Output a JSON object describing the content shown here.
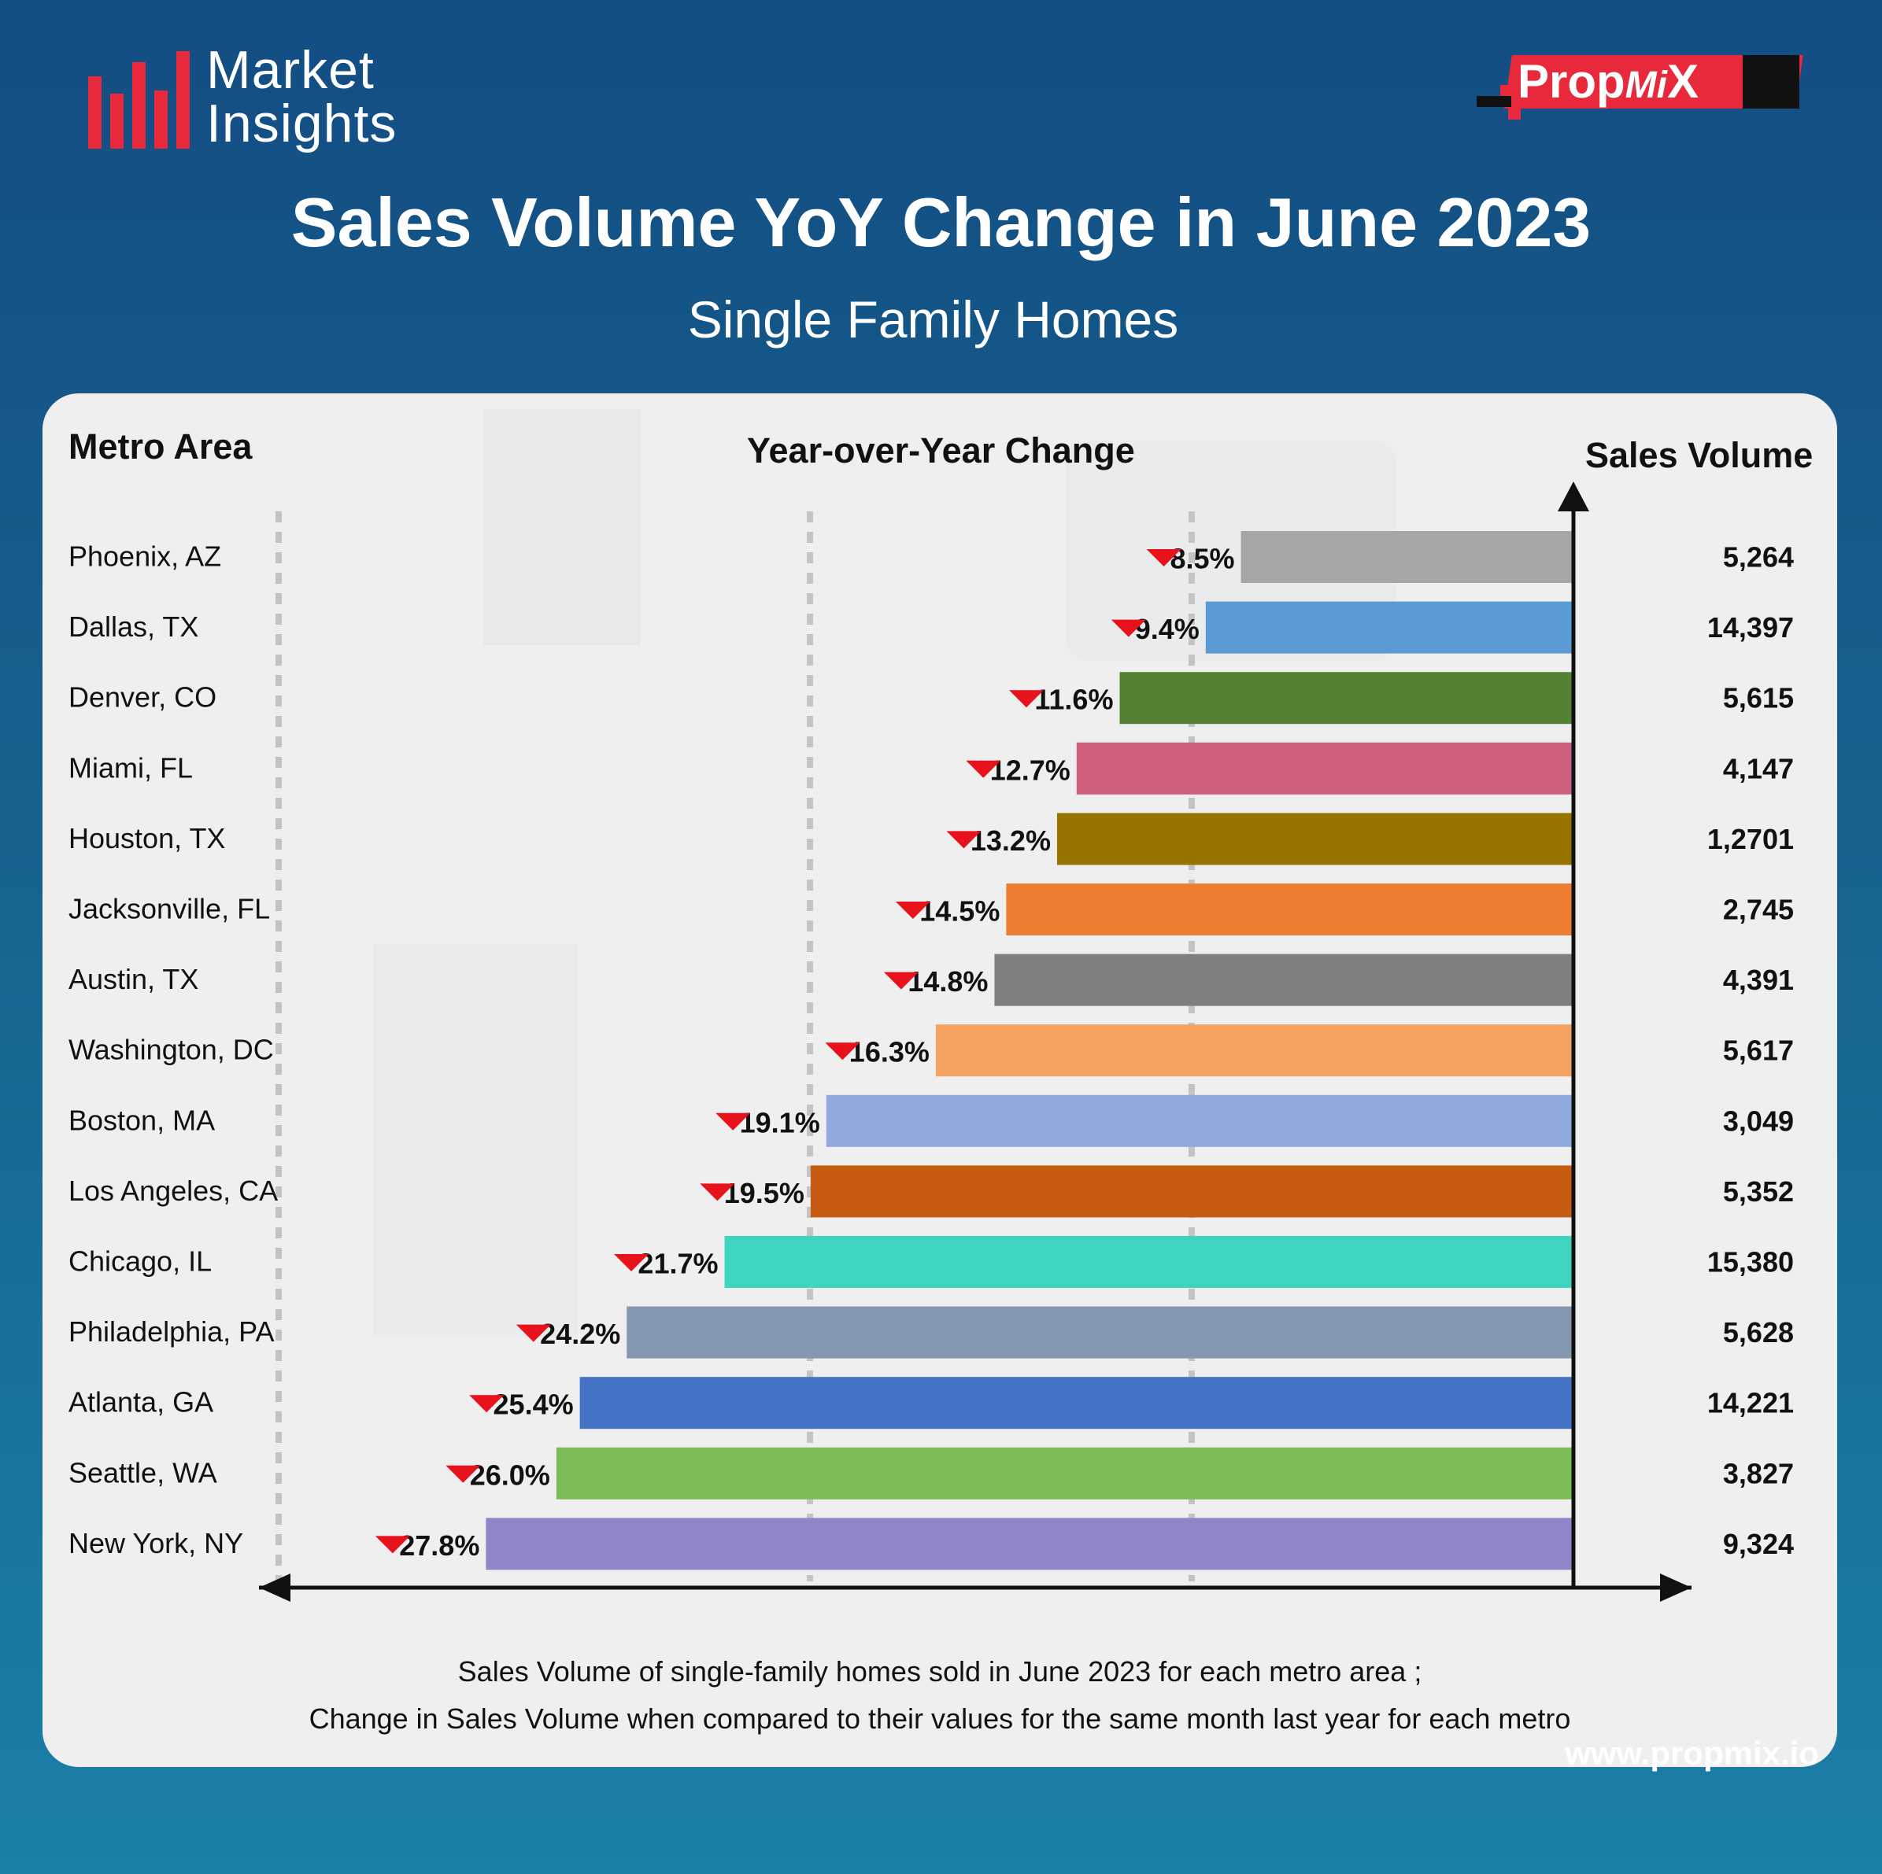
{
  "brand": {
    "line1": "Market",
    "line2": "Insights"
  },
  "logo": {
    "text_a": "Prop",
    "text_b": "Mi",
    "text_c": "X"
  },
  "title": "Sales Volume YoY Change in June 2023",
  "subtitle": "Single Family Homes",
  "headers": {
    "metro": "Metro Area",
    "yoy": "Year-over-Year Change",
    "volume": "Sales Volume"
  },
  "colors": {
    "down_arrow": "#e8121c",
    "brand_red": "#e8293b",
    "axis": "#111111"
  },
  "chart_data": {
    "type": "bar",
    "orientation": "horizontal",
    "title": "Sales Volume YoY Change in June 2023",
    "subtitle": "Single Family Homes",
    "categories": [
      "Phoenix, AZ",
      "Dallas, TX",
      "Denver, CO",
      "Miami, FL",
      "Houston, TX",
      "Jacksonville, FL",
      "Austin, TX",
      "Washington, DC",
      "Boston, MA",
      "Los Angeles, CA",
      "Chicago, IL",
      "Philadelphia, PA",
      "Atlanta, GA",
      "Seattle, WA",
      "New York, NY"
    ],
    "yoy_change_pct": [
      -8.5,
      -9.4,
      -11.6,
      -12.7,
      -13.2,
      -14.5,
      -14.8,
      -16.3,
      -19.1,
      -19.5,
      -21.7,
      -24.2,
      -25.4,
      -26.0,
      -27.8
    ],
    "labels": [
      "8.5%",
      "9.4%",
      "11.6%",
      "12.7%",
      "13.2%",
      "14.5%",
      "14.8%",
      "16.3%",
      "19.1%",
      "19.5%",
      "21.7%",
      "24.2%",
      "25.4%",
      "26.0%",
      "27.8%"
    ],
    "sales_volume": [
      "5,264",
      "14,397",
      "5,615",
      "4,147",
      "1,2701",
      "2,745",
      "4,391",
      "5,617",
      "3,049",
      "5,352",
      "15,380",
      "5,628",
      "14,221",
      "3,827",
      "9,324"
    ],
    "bar_colors": [
      "#a6a6a6",
      "#5b9bd5",
      "#548235",
      "#cd5f7c",
      "#997300",
      "#ed7d31",
      "#7f7f7f",
      "#f4a261",
      "#8faadc",
      "#c55a11",
      "#3ed5c0",
      "#8497b0",
      "#4472c4",
      "#7dbd57",
      "#8e86c8"
    ],
    "xlim": [
      -30,
      0
    ]
  },
  "footnote": {
    "line1": "Sales Volume of single-family homes sold in June 2023 for each metro area ;",
    "line2": "Change in Sales Volume when compared to their values for the same month last year for each metro"
  },
  "url": "www.propmix.io"
}
